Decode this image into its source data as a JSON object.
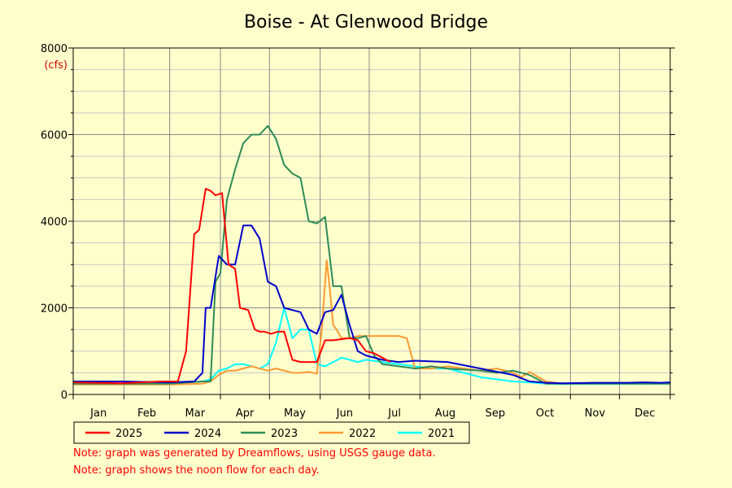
{
  "chart_data": {
    "type": "line",
    "title": "Boise - At Glenwood Bridge",
    "ylabel": "(cfs)",
    "ylim": [
      0,
      8000
    ],
    "yticks": [
      0,
      2000,
      4000,
      6000,
      8000
    ],
    "xlim_day": [
      1,
      366
    ],
    "month_labels": [
      "Jan",
      "Feb",
      "Mar",
      "Apr",
      "May",
      "Jun",
      "Jul",
      "Aug",
      "Sep",
      "Oct",
      "Nov",
      "Dec"
    ],
    "grid": true,
    "legend_position": "bottom-left",
    "series": [
      {
        "name": "2025",
        "color": "#ff0000",
        "x_day": [
          1,
          30,
          55,
          65,
          70,
          75,
          78,
          82,
          85,
          88,
          92,
          96,
          100,
          103,
          108,
          112,
          115,
          118,
          122,
          126,
          130,
          135,
          140,
          145,
          150,
          155,
          160,
          170,
          175,
          180,
          185,
          190,
          195
        ],
        "y": [
          280,
          260,
          300,
          300,
          1000,
          3700,
          3800,
          4750,
          4700,
          4600,
          4650,
          3000,
          2900,
          2000,
          1950,
          1500,
          1450,
          1450,
          1400,
          1450,
          1450,
          800,
          750,
          750,
          750,
          1250,
          1250,
          1300,
          1250,
          1000,
          950,
          850,
          750
        ]
      },
      {
        "name": "2024",
        "color": "#0000cc",
        "x_day": [
          1,
          30,
          60,
          75,
          80,
          82,
          85,
          90,
          95,
          100,
          105,
          110,
          115,
          120,
          125,
          130,
          135,
          140,
          145,
          150,
          155,
          160,
          165,
          170,
          175,
          180,
          190,
          200,
          210,
          230,
          250,
          270,
          280,
          290,
          300,
          320,
          340,
          350,
          360,
          366
        ],
        "y": [
          300,
          300,
          280,
          300,
          500,
          2000,
          2000,
          3200,
          3000,
          3000,
          3900,
          3900,
          3600,
          2600,
          2500,
          2000,
          1950,
          1900,
          1500,
          1400,
          1900,
          1950,
          2300,
          1600,
          1000,
          900,
          800,
          750,
          780,
          750,
          600,
          450,
          300,
          270,
          260,
          270,
          270,
          280,
          270,
          280
        ]
      },
      {
        "name": "2023",
        "color": "#2e8b57",
        "x_day": [
          1,
          30,
          60,
          80,
          85,
          88,
          91,
          95,
          100,
          105,
          110,
          115,
          120,
          125,
          130,
          135,
          140,
          145,
          150,
          155,
          160,
          165,
          170,
          175,
          180,
          185,
          190,
          200,
          210,
          220,
          230,
          250,
          260,
          270,
          280,
          290,
          300,
          366
        ],
        "y": [
          250,
          250,
          250,
          300,
          300,
          2600,
          2800,
          4500,
          5200,
          5800,
          6000,
          6000,
          6200,
          5900,
          5300,
          5100,
          5000,
          4000,
          3950,
          4100,
          2500,
          2500,
          1300,
          1300,
          1350,
          900,
          700,
          650,
          600,
          650,
          600,
          550,
          500,
          550,
          450,
          250,
          250,
          250
        ]
      },
      {
        "name": "2022",
        "color": "#ff9933",
        "x_day": [
          1,
          30,
          60,
          80,
          85,
          90,
          95,
          100,
          105,
          110,
          115,
          120,
          125,
          130,
          135,
          140,
          145,
          150,
          153,
          156,
          158,
          160,
          162,
          165,
          170,
          175,
          180,
          190,
          200,
          205,
          210,
          220,
          230,
          240,
          250,
          260,
          270,
          275,
          280,
          290,
          300,
          366
        ],
        "y": [
          230,
          230,
          230,
          250,
          300,
          450,
          550,
          550,
          600,
          650,
          600,
          550,
          600,
          550,
          500,
          500,
          520,
          480,
          1500,
          3100,
          2400,
          1600,
          1500,
          1300,
          1300,
          1350,
          1350,
          1350,
          1350,
          1300,
          600,
          600,
          650,
          600,
          550,
          600,
          500,
          400,
          520,
          300,
          250,
          260
        ]
      },
      {
        "name": "2021",
        "color": "#00ffff",
        "x_day": [
          1,
          30,
          60,
          80,
          85,
          90,
          95,
          100,
          105,
          110,
          115,
          120,
          125,
          130,
          135,
          140,
          145,
          150,
          155,
          160,
          165,
          170,
          175,
          180,
          190,
          200,
          210,
          220,
          230,
          240,
          250,
          260,
          270,
          280,
          290,
          300,
          366
        ],
        "y": [
          250,
          250,
          250,
          300,
          350,
          550,
          600,
          700,
          700,
          650,
          600,
          700,
          1200,
          2000,
          1300,
          1500,
          1500,
          700,
          650,
          750,
          850,
          800,
          750,
          800,
          750,
          700,
          650,
          600,
          600,
          500,
          400,
          350,
          300,
          280,
          250,
          240,
          250
        ]
      }
    ]
  },
  "notes": [
    "Note: graph was generated by Dreamflows, using USGS gauge data.",
    "Note: graph shows the noon flow for each day."
  ]
}
